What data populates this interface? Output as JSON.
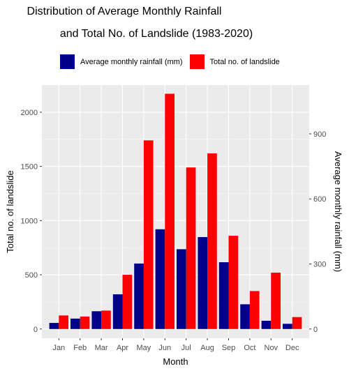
{
  "title_line1": "Distribution of Average Monthly Rainfall",
  "title_line2": "and Total No. of Landslide (1983-2020)",
  "colors": {
    "rainfall": "#00008B",
    "landslide": "#FF0000",
    "panel": "#EBEBEB"
  },
  "chart_data": {
    "type": "bar",
    "categories": [
      "Jan",
      "Feb",
      "Mar",
      "Apr",
      "May",
      "Jun",
      "Jul",
      "Aug",
      "Sep",
      "Oct",
      "Nov",
      "Dec"
    ],
    "series": [
      {
        "name": "Average monthly rainfall (mm)",
        "axis": "right",
        "values": [
          28,
          48,
          82,
          160,
          302,
          460,
          368,
          424,
          308,
          114,
          38,
          24
        ]
      },
      {
        "name": "Total no. of landslide",
        "axis": "left",
        "values": [
          125,
          115,
          170,
          500,
          1740,
          2170,
          1490,
          1620,
          860,
          350,
          520,
          110
        ]
      }
    ],
    "xlabel": "Month",
    "ylabel_left": "Total no. of landslide",
    "ylabel_right": "Average monthly rainfall (mm)",
    "yticks_left": [
      0,
      500,
      1000,
      1500,
      2000
    ],
    "yticks_right": [
      0,
      300,
      600,
      900
    ],
    "ylim_left": [
      -85,
      2250
    ],
    "ylim_right": [
      -42.5,
      1125
    ],
    "grid": true,
    "legend_position": "top"
  }
}
